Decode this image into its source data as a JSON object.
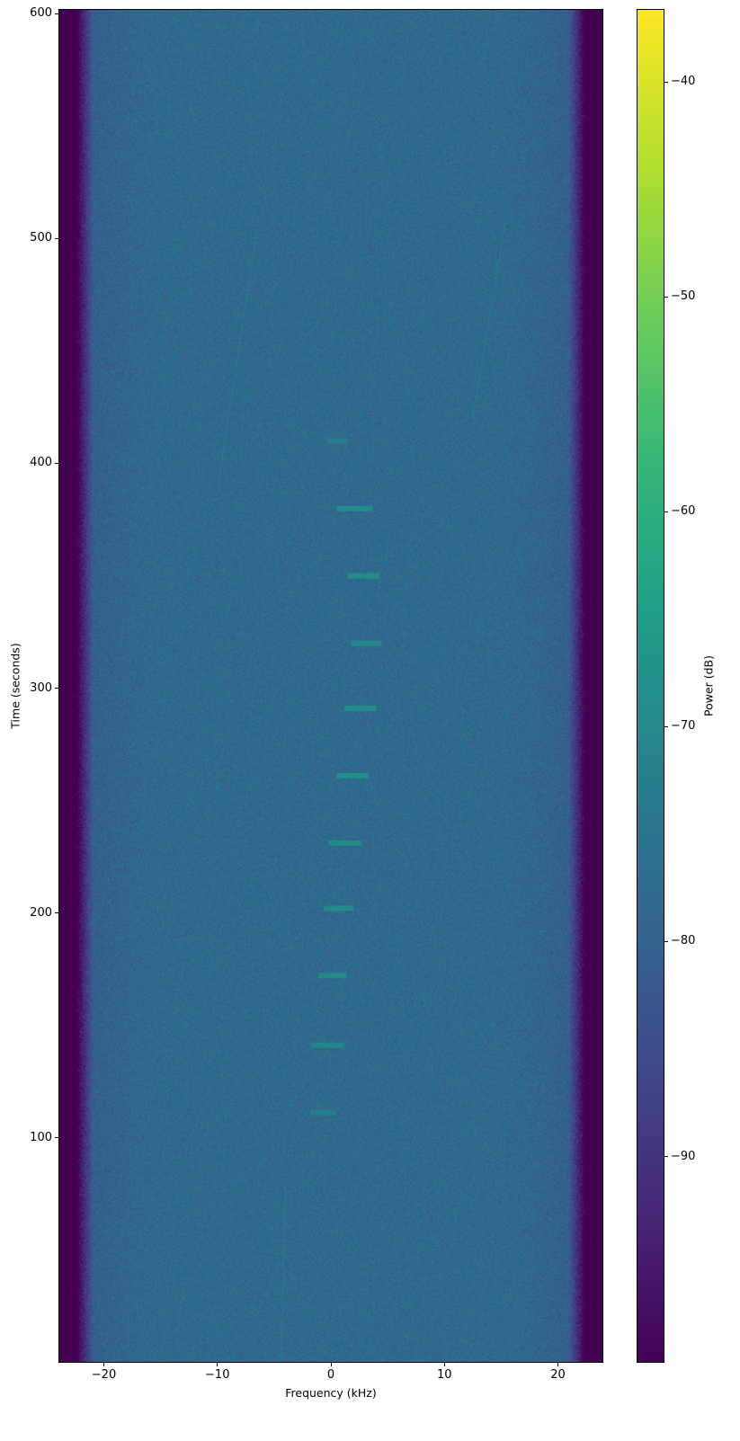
{
  "chart_data": {
    "type": "heatmap",
    "title": "",
    "xlabel": "Frequency (kHz)",
    "ylabel": "Time (seconds)",
    "xlim": [
      -24,
      24
    ],
    "ylim": [
      0,
      602
    ],
    "xticks": [
      -20,
      -10,
      0,
      10,
      20
    ],
    "xtick_labels": [
      "−20",
      "−10",
      "0",
      "10",
      "20"
    ],
    "yticks": [
      100,
      200,
      300,
      400,
      500,
      600
    ],
    "ytick_labels": [
      "100",
      "200",
      "300",
      "400",
      "500",
      "600"
    ],
    "colormap": "viridis",
    "colorbar": {
      "label": "Power (dB)",
      "range": [
        -99.6,
        -36.6
      ],
      "ticks": [
        -40,
        -50,
        -60,
        -70,
        -80,
        -90
      ],
      "tick_labels": [
        "−40",
        "−50",
        "−60",
        "−70",
        "−80",
        "−90"
      ]
    },
    "noise_floor_db": -78,
    "passband_khz": [
      -21,
      21
    ],
    "bursts": [
      {
        "time_s": 410,
        "f_start_khz": -0.3,
        "f_end_khz": 1.5,
        "power_db": -71
      },
      {
        "time_s": 380,
        "f_start_khz": 0.5,
        "f_end_khz": 3.7,
        "power_db": -66
      },
      {
        "time_s": 350,
        "f_start_khz": 1.5,
        "f_end_khz": 4.3,
        "power_db": -66
      },
      {
        "time_s": 320,
        "f_start_khz": 1.8,
        "f_end_khz": 4.5,
        "power_db": -67
      },
      {
        "time_s": 291,
        "f_start_khz": 1.2,
        "f_end_khz": 4.0,
        "power_db": -66
      },
      {
        "time_s": 261,
        "f_start_khz": 0.5,
        "f_end_khz": 3.3,
        "power_db": -65
      },
      {
        "time_s": 231,
        "f_start_khz": -0.2,
        "f_end_khz": 2.7,
        "power_db": -67
      },
      {
        "time_s": 202,
        "f_start_khz": -0.6,
        "f_end_khz": 2.0,
        "power_db": -67
      },
      {
        "time_s": 172,
        "f_start_khz": -1.1,
        "f_end_khz": 1.4,
        "power_db": -67
      },
      {
        "time_s": 141,
        "f_start_khz": -1.8,
        "f_end_khz": 1.2,
        "power_db": -68
      },
      {
        "time_s": 111,
        "f_start_khz": -1.8,
        "f_end_khz": 0.5,
        "power_db": -71
      }
    ],
    "tones": [
      {
        "from": {
          "time_s": 0,
          "freq_khz": -4.4
        },
        "to": {
          "time_s": 80,
          "freq_khz": -4.0
        }
      },
      {
        "from": {
          "time_s": 390,
          "freq_khz": -10
        },
        "to": {
          "time_s": 505,
          "freq_khz": -6.5
        }
      },
      {
        "from": {
          "time_s": 420,
          "freq_khz": 12.5
        },
        "to": {
          "time_s": 510,
          "freq_khz": 15.5
        }
      }
    ]
  }
}
